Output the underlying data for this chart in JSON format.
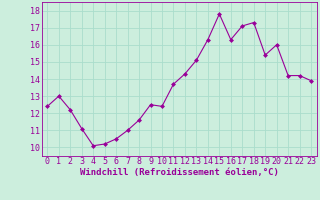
{
  "x": [
    0,
    1,
    2,
    3,
    4,
    5,
    6,
    7,
    8,
    9,
    10,
    11,
    12,
    13,
    14,
    15,
    16,
    17,
    18,
    19,
    20,
    21,
    22,
    23
  ],
  "y": [
    12.4,
    13.0,
    12.2,
    11.1,
    10.1,
    10.2,
    10.5,
    11.0,
    11.6,
    12.5,
    12.4,
    13.7,
    14.3,
    15.1,
    16.3,
    17.8,
    16.3,
    17.1,
    17.3,
    15.4,
    16.0,
    14.2,
    14.2,
    13.9
  ],
  "xlim": [
    -0.5,
    23.5
  ],
  "ylim": [
    9.5,
    18.5
  ],
  "yticks": [
    10,
    11,
    12,
    13,
    14,
    15,
    16,
    17,
    18
  ],
  "xticks": [
    0,
    1,
    2,
    3,
    4,
    5,
    6,
    7,
    8,
    9,
    10,
    11,
    12,
    13,
    14,
    15,
    16,
    17,
    18,
    19,
    20,
    21,
    22,
    23
  ],
  "xlabel": "Windchill (Refroidissement éolien,°C)",
  "line_color": "#990099",
  "marker": "D",
  "marker_size": 2.5,
  "bg_color": "#cceedd",
  "grid_color": "#aaddcc",
  "xlabel_color": "#990099",
  "tick_color": "#990099",
  "tick_fontsize": 6.0,
  "xlabel_fontsize": 6.5
}
